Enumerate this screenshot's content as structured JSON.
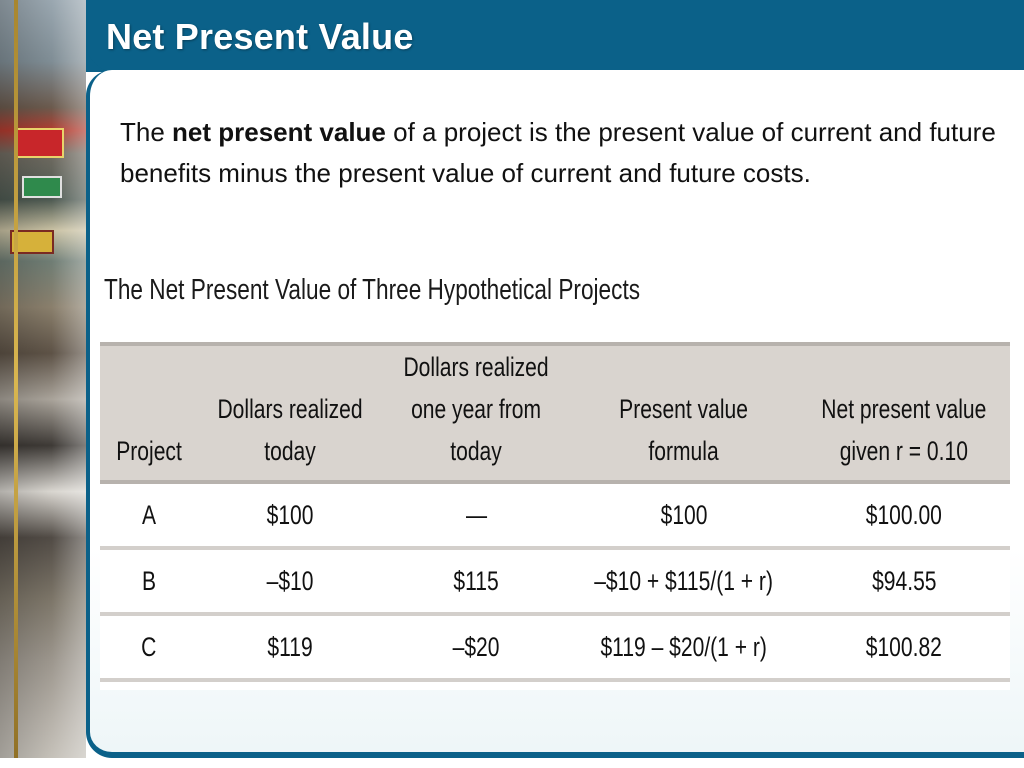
{
  "slide": {
    "title": "Net Present Value"
  },
  "intro": {
    "pre": "The ",
    "bold": "net present value",
    "post": " of a project is the present value of current and future benefits minus the present value of current and future costs."
  },
  "figure": {
    "title": "The Net Present Value of Three Hypothetical Projects",
    "headers": [
      [
        "Project"
      ],
      [
        "Dollars realized",
        "today"
      ],
      [
        "Dollars realized",
        "one year from",
        "today"
      ],
      [
        "Present value",
        "formula"
      ],
      [
        "Net present value",
        "given r = 0.10"
      ]
    ],
    "rows": [
      [
        "A",
        "$100",
        "—",
        "$100",
        "$100.00"
      ],
      [
        "B",
        "–$10",
        "$115",
        "–$10 + $115/(1 + r)",
        "$94.55"
      ],
      [
        "C",
        "$119",
        "–$20",
        "$119 – $20/(1 + r)",
        "$100.82"
      ]
    ]
  },
  "colors": {
    "header_bar": "#0b6189",
    "table_header_bg": "#d9d4cf"
  }
}
